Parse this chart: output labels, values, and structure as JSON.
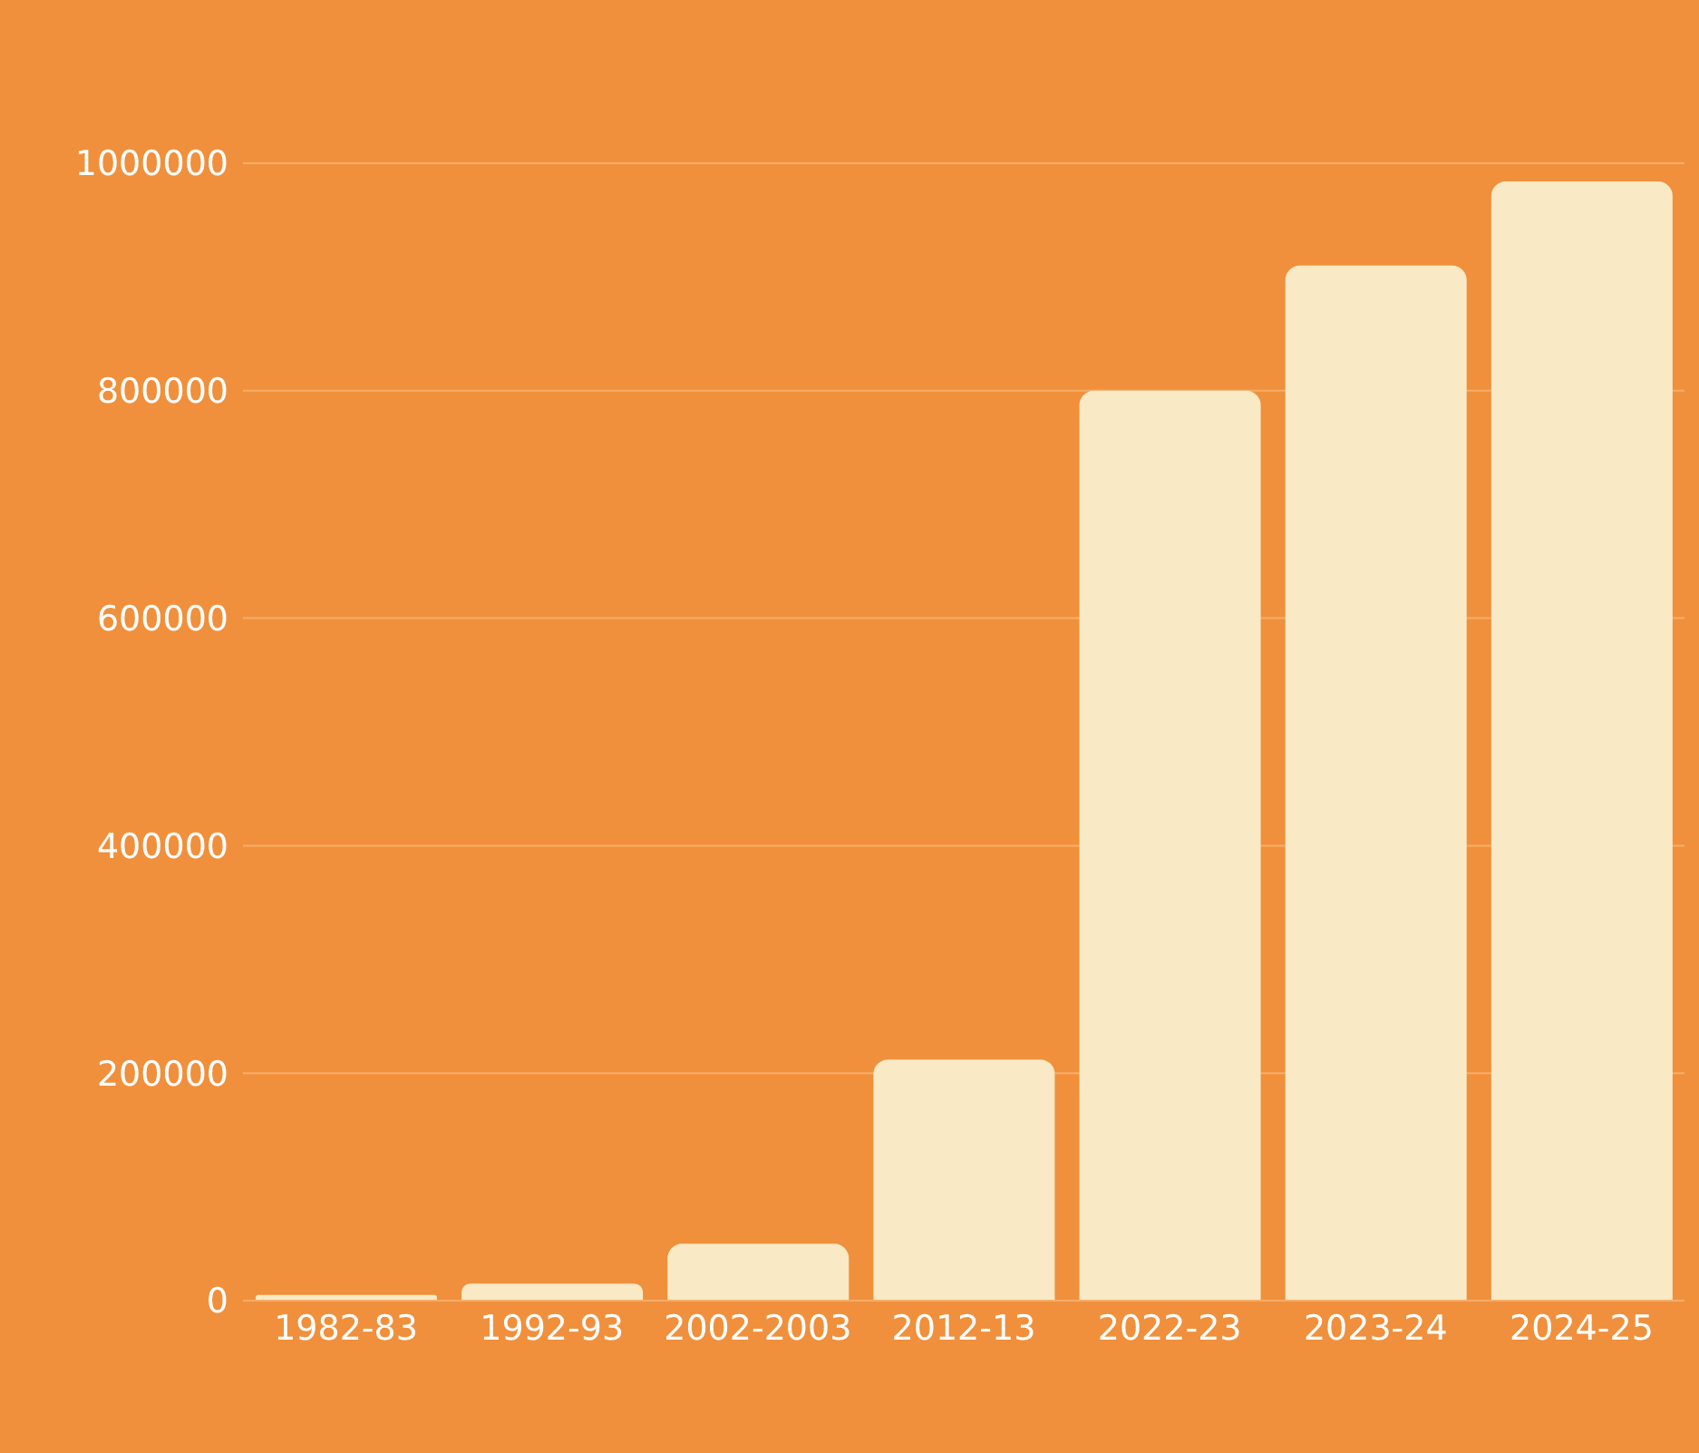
{
  "chart_data": {
    "type": "bar",
    "categories": [
      "1982-83",
      "1992-93",
      "2002-2003",
      "2012-13",
      "2022-23",
      "2023-24",
      "2024-25"
    ],
    "values": [
      5000,
      15000,
      50000,
      212000,
      800000,
      910000,
      984000
    ],
    "color": "#f9e9c5",
    "ylim": [
      0,
      1000000
    ],
    "yticks": [
      0,
      200000,
      400000,
      600000,
      800000,
      1000000
    ],
    "grid": "y"
  }
}
